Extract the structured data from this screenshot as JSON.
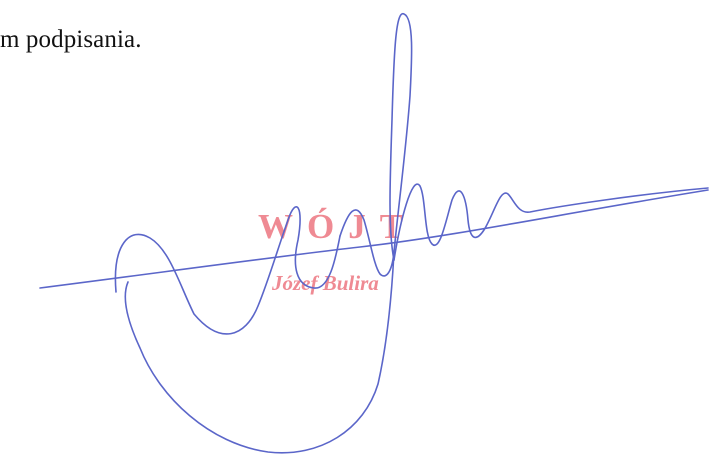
{
  "document": {
    "text_line": "m podpisania."
  },
  "stamp": {
    "title": "WÓJT",
    "name": "Józef Bulira",
    "color": "#ef8a93"
  },
  "signature": {
    "color": "#5b66c9"
  }
}
